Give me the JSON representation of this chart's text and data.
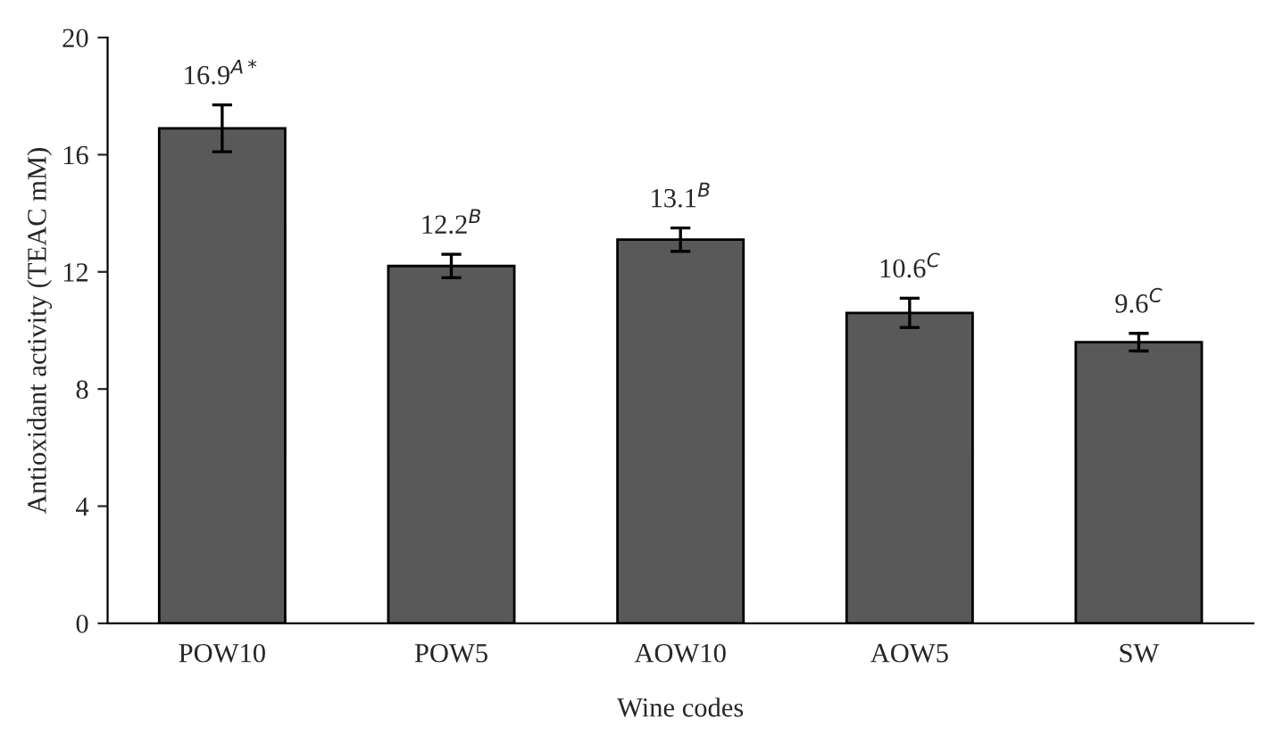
{
  "chart_data": {
    "type": "bar",
    "xlabel": "Wine codes",
    "ylabel": "Antioxidant activity (TEAC mM)",
    "categories": [
      "POW10",
      "POW5",
      "AOW10",
      "AOW5",
      "SW"
    ],
    "values": [
      16.9,
      12.2,
      13.1,
      10.6,
      9.6
    ],
    "errors": [
      0.8,
      0.4,
      0.4,
      0.5,
      0.3
    ],
    "value_labels": [
      "16.9$^{A*}$",
      "12.2$^{B}$",
      "13.1$^{B}$",
      "10.6$^{C}$",
      "9.6$^{C}$"
    ],
    "color": "#595959",
    "ylim": [
      0,
      20
    ],
    "yticks": [
      0,
      4,
      8,
      12,
      16,
      20
    ],
    "grid": false,
    "legend": false
  }
}
